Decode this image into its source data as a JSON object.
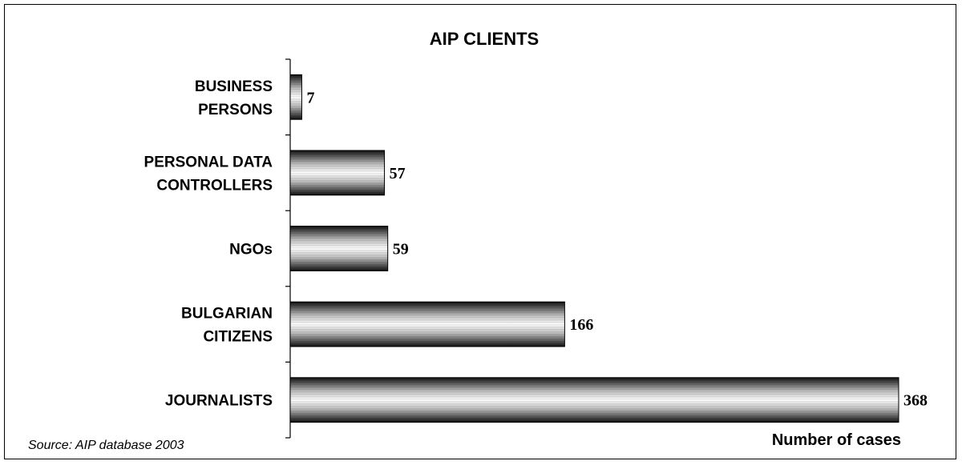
{
  "chart_data": {
    "type": "bar",
    "orientation": "horizontal",
    "title": "AIP CLIENTS",
    "xlabel": "Number of cases",
    "ylabel": "",
    "source": "Source: AIP database 2003",
    "categories": [
      [
        "BUSINESS",
        "PERSONS"
      ],
      [
        "PERSONAL DATA",
        "CONTROLLERS"
      ],
      [
        "NGOs"
      ],
      [
        "BULGARIAN",
        "CITIZENS"
      ],
      [
        "JOURNALISTS"
      ]
    ],
    "values": [
      7,
      57,
      59,
      166,
      368
    ],
    "xlim": [
      0,
      368
    ],
    "grid": false,
    "legend": "none",
    "colors": {
      "bar_dark": "#1a1a1a",
      "bar_light": "#ffffff"
    }
  }
}
